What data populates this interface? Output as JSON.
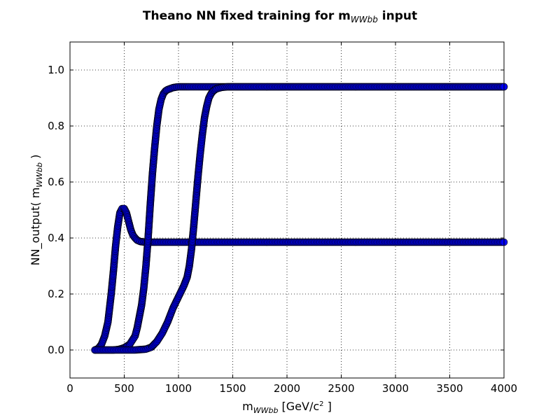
{
  "chart_data": {
    "type": "scatter",
    "title_main": "Theano NN fixed training for m",
    "title_sub": "WWbb",
    "title_suffix": " input",
    "xlabel_main": "m",
    "xlabel_sub": "WWbb",
    "xlabel_unit": " [GeV/c",
    "xlabel_unit_sup": "2",
    "xlabel_unit_end": " ]",
    "ylabel_main": "NN_output( m",
    "ylabel_sub": "WWbb",
    "ylabel_end": " )",
    "xlim": [
      0,
      4000
    ],
    "ylim": [
      -0.1,
      1.1
    ],
    "xticks": [
      0,
      500,
      1000,
      1500,
      2000,
      2500,
      3000,
      3500,
      4000
    ],
    "xtick_labels": [
      "0",
      "500",
      "1000",
      "1500",
      "2000",
      "2500",
      "3000",
      "3500",
      "4000"
    ],
    "yticks": [
      0.0,
      0.2,
      0.4,
      0.6,
      0.8,
      1.0
    ],
    "ytick_labels": [
      "0.0",
      "0.2",
      "0.4",
      "0.6",
      "0.8",
      "1.0"
    ],
    "grid": true,
    "marker_color": "#0000ff",
    "series": [
      {
        "x": [
          230,
          260,
          290,
          320,
          350,
          380,
          400,
          420,
          440,
          460,
          480,
          500,
          520,
          540,
          560,
          580,
          600,
          620,
          650,
          700,
          750,
          800,
          900,
          1000,
          1200,
          1500,
          2000,
          2500,
          3000,
          3500,
          4000
        ],
        "y": [
          0.0,
          0.005,
          0.02,
          0.05,
          0.1,
          0.2,
          0.28,
          0.37,
          0.44,
          0.49,
          0.505,
          0.505,
          0.49,
          0.46,
          0.43,
          0.41,
          0.4,
          0.392,
          0.387,
          0.385,
          0.385,
          0.385,
          0.385,
          0.385,
          0.385,
          0.385,
          0.385,
          0.385,
          0.385,
          0.385,
          0.385
        ]
      },
      {
        "x": [
          230,
          300,
          400,
          450,
          500,
          550,
          600,
          620,
          640,
          660,
          680,
          700,
          720,
          740,
          760,
          780,
          800,
          820,
          840,
          860,
          880,
          900,
          950,
          1000,
          1050,
          1100,
          1200,
          1300,
          1500,
          2000,
          2500,
          3000,
          3500,
          4000
        ],
        "y": [
          0.0,
          0.0,
          0.0,
          0.002,
          0.008,
          0.02,
          0.05,
          0.08,
          0.12,
          0.16,
          0.22,
          0.3,
          0.4,
          0.52,
          0.63,
          0.72,
          0.8,
          0.86,
          0.895,
          0.915,
          0.925,
          0.93,
          0.937,
          0.94,
          0.94,
          0.94,
          0.94,
          0.94,
          0.94,
          0.94,
          0.94,
          0.94,
          0.94,
          0.94
        ]
      },
      {
        "x": [
          230,
          400,
          600,
          700,
          750,
          800,
          850,
          900,
          950,
          1000,
          1050,
          1080,
          1100,
          1120,
          1140,
          1160,
          1180,
          1200,
          1220,
          1240,
          1260,
          1280,
          1300,
          1320,
          1350,
          1400,
          1450,
          1500,
          1600,
          2000,
          2500,
          3000,
          3500,
          4000
        ],
        "y": [
          0.0,
          0.0,
          0.0,
          0.003,
          0.01,
          0.03,
          0.06,
          0.1,
          0.15,
          0.19,
          0.23,
          0.26,
          0.3,
          0.36,
          0.44,
          0.53,
          0.62,
          0.7,
          0.77,
          0.83,
          0.87,
          0.9,
          0.915,
          0.925,
          0.933,
          0.938,
          0.94,
          0.94,
          0.94,
          0.94,
          0.94,
          0.94,
          0.94,
          0.94
        ]
      }
    ]
  }
}
